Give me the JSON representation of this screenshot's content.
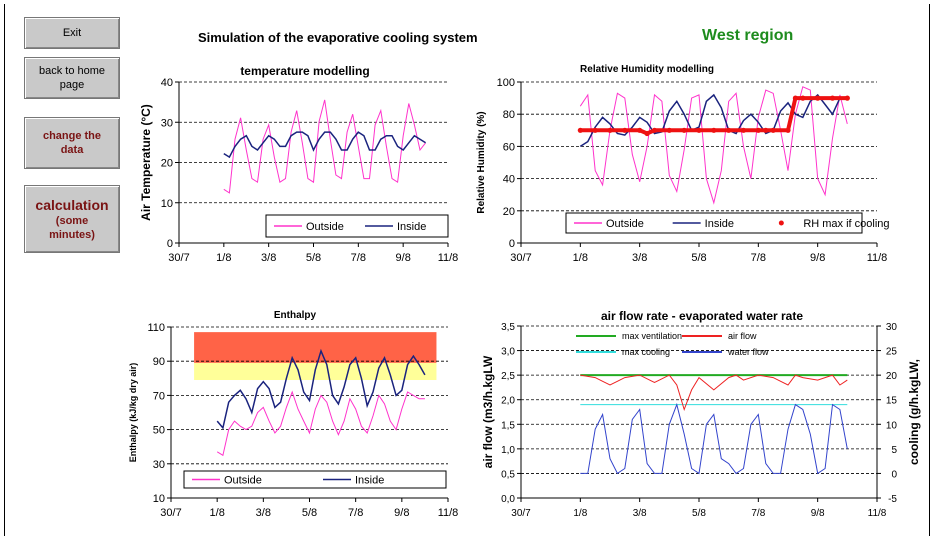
{
  "buttons": {
    "exit": "Exit",
    "home_1": "back to home",
    "home_2": "page",
    "change_1": "change the",
    "change_2": "data",
    "calc_1": "calculation",
    "calc_2": "(some",
    "calc_3": "minutes)"
  },
  "header": {
    "title": "Simulation of the evaporative cooling system",
    "region": "West region",
    "region_color": "#1e8c1e"
  },
  "chart_data": [
    {
      "type": "line",
      "title": "temperature modelling",
      "ylabel": "Air Temperature (°C)",
      "xlabel": "",
      "x_ticks": [
        "30/7",
        "1/8",
        "3/8",
        "5/8",
        "7/8",
        "9/8",
        "11/8"
      ],
      "x_range": [
        "30/7",
        "11/8"
      ],
      "ylim": [
        0,
        45
      ],
      "y_ticks": [
        "0",
        "10",
        "20",
        "30",
        "40"
      ],
      "grid": true,
      "legend": "bottom-right",
      "series": [
        {
          "name": "Outside",
          "color": "#ff33cc",
          "x": [
            1.0,
            1.25,
            1.5,
            1.75,
            2.0,
            2.25,
            2.5,
            2.75,
            3.0,
            3.25,
            3.5,
            3.75,
            4.0,
            4.25,
            4.5,
            4.75,
            5.0,
            5.25,
            5.5,
            5.75,
            6.0,
            6.25,
            6.5,
            6.75,
            7.0,
            7.25,
            7.5,
            7.75,
            8.0,
            8.25,
            8.5,
            8.75,
            9.0,
            9.25,
            9.5,
            9.75,
            10.0
          ],
          "values": [
            15,
            14,
            29,
            35,
            26,
            18,
            17,
            29,
            33,
            24,
            17,
            18,
            31,
            37,
            28,
            18,
            17,
            34,
            40,
            29,
            19,
            18,
            31,
            36,
            27,
            18,
            18,
            33,
            37,
            27,
            18,
            17,
            30,
            39,
            33,
            26,
            28
          ]
        },
        {
          "name": "Inside",
          "color": "#1a237e",
          "x": [
            1.0,
            1.25,
            1.5,
            1.75,
            2.0,
            2.25,
            2.5,
            2.75,
            3.0,
            3.25,
            3.5,
            3.75,
            4.0,
            4.25,
            4.5,
            4.75,
            5.0,
            5.25,
            5.5,
            5.75,
            6.0,
            6.25,
            6.5,
            6.75,
            7.0,
            7.25,
            7.5,
            7.75,
            8.0,
            8.25,
            8.5,
            8.75,
            9.0,
            9.25,
            9.5,
            9.75,
            10.0
          ],
          "values": [
            25,
            24,
            27,
            29,
            30,
            27,
            26,
            28,
            30,
            29,
            27,
            27,
            30,
            31,
            31,
            30,
            26,
            29,
            31,
            31,
            29,
            26,
            26,
            29,
            31,
            30,
            26,
            26,
            29,
            30,
            30,
            27,
            26,
            28,
            30,
            29,
            28
          ]
        }
      ]
    },
    {
      "type": "line",
      "title": "Relative Humidity modelling",
      "ylabel": "Relative Humidity (%)",
      "xlabel": "",
      "x_ticks": [
        "30/7",
        "1/8",
        "3/8",
        "5/8",
        "7/8",
        "9/8",
        "11/8"
      ],
      "x_range": [
        "30/7",
        "11/8"
      ],
      "ylim": [
        0,
        100
      ],
      "y_ticks": [
        "0",
        "20",
        "40",
        "60",
        "80",
        "100"
      ],
      "grid": true,
      "legend": "bottom-right",
      "series": [
        {
          "name": "Outside",
          "color": "#ff33cc",
          "x": [
            1.0,
            1.25,
            1.5,
            1.75,
            2.0,
            2.25,
            2.5,
            2.75,
            3.0,
            3.25,
            3.5,
            3.75,
            4.0,
            4.25,
            4.5,
            4.75,
            5.0,
            5.25,
            5.5,
            5.75,
            6.0,
            6.25,
            6.5,
            6.75,
            7.0,
            7.25,
            7.5,
            7.75,
            8.0,
            8.25,
            8.5,
            8.75,
            9.0,
            9.25,
            9.5,
            9.75,
            10.0
          ],
          "values": [
            85,
            92,
            45,
            36,
            70,
            93,
            90,
            55,
            38,
            60,
            92,
            88,
            42,
            32,
            58,
            90,
            92,
            40,
            25,
            45,
            88,
            93,
            60,
            40,
            78,
            95,
            93,
            70,
            45,
            80,
            97,
            95,
            40,
            30,
            65,
            92,
            74
          ]
        },
        {
          "name": "Inside",
          "color": "#1a237e",
          "x": [
            1.0,
            1.25,
            1.5,
            1.75,
            2.0,
            2.25,
            2.5,
            2.75,
            3.0,
            3.25,
            3.5,
            3.75,
            4.0,
            4.25,
            4.5,
            4.75,
            5.0,
            5.25,
            5.5,
            5.75,
            6.0,
            6.25,
            6.5,
            6.75,
            7.0,
            7.25,
            7.5,
            7.75,
            8.0,
            8.25,
            8.5,
            8.75,
            9.0,
            9.25,
            9.5,
            9.75,
            10.0
          ],
          "values": [
            60,
            63,
            72,
            78,
            74,
            68,
            67,
            72,
            78,
            75,
            68,
            69,
            82,
            88,
            80,
            70,
            72,
            88,
            92,
            84,
            70,
            68,
            76,
            80,
            75,
            68,
            70,
            82,
            87,
            80,
            78,
            88,
            92,
            86,
            80,
            90,
            90
          ]
        },
        {
          "name": "RH max if cooling",
          "color": "#ee1111",
          "x": [
            1.0,
            1.5,
            2.0,
            2.5,
            3.0,
            3.25,
            3.5,
            4.0,
            4.5,
            5.0,
            5.5,
            6.0,
            6.5,
            7.0,
            7.25,
            7.5,
            8.0,
            8.25,
            8.5,
            9.0,
            9.5,
            10.0
          ],
          "values": [
            70,
            70,
            70,
            70,
            70,
            68,
            70,
            70,
            70,
            70,
            70,
            70,
            70,
            70,
            70,
            70,
            70,
            90,
            90,
            90,
            90,
            90
          ]
        }
      ]
    },
    {
      "type": "line",
      "title": "Enthalpy",
      "ylabel": "Enthalpy (kJ/kg dry air)",
      "xlabel": "",
      "x_ticks": [
        "30/7",
        "1/8",
        "3/8",
        "5/8",
        "7/8",
        "9/8",
        "11/8"
      ],
      "x_range": [
        "30/7",
        "11/8"
      ],
      "ylim": [
        10,
        110
      ],
      "y_ticks": [
        "10",
        "30",
        "50",
        "70",
        "90",
        "110"
      ],
      "grid": true,
      "legend": "bottom-right",
      "bands": [
        {
          "from": 89,
          "to": 107,
          "color": "#ff6347"
        },
        {
          "from": 79,
          "to": 89,
          "color": "#ffff99"
        }
      ],
      "series": [
        {
          "name": "Outside",
          "color": "#ff33cc",
          "x": [
            1.0,
            1.25,
            1.5,
            1.75,
            2.0,
            2.25,
            2.5,
            2.75,
            3.0,
            3.25,
            3.5,
            3.75,
            4.0,
            4.25,
            4.5,
            4.75,
            5.0,
            5.25,
            5.5,
            5.75,
            6.0,
            6.25,
            6.5,
            6.75,
            7.0,
            7.25,
            7.5,
            7.75,
            8.0,
            8.25,
            8.5,
            8.75,
            9.0,
            9.25,
            9.5,
            9.75,
            10.0
          ],
          "values": [
            37,
            35,
            50,
            55,
            52,
            50,
            52,
            60,
            63,
            55,
            48,
            52,
            63,
            72,
            62,
            55,
            48,
            62,
            70,
            66,
            55,
            47,
            55,
            68,
            62,
            52,
            48,
            58,
            70,
            65,
            55,
            50,
            62,
            72,
            70,
            68,
            68
          ]
        },
        {
          "name": "Inside",
          "color": "#1a237e",
          "x": [
            1.0,
            1.25,
            1.5,
            1.75,
            2.0,
            2.25,
            2.5,
            2.75,
            3.0,
            3.25,
            3.5,
            3.75,
            4.0,
            4.25,
            4.5,
            4.75,
            5.0,
            5.25,
            5.5,
            5.75,
            6.0,
            6.25,
            6.5,
            6.75,
            7.0,
            7.25,
            7.5,
            7.75,
            8.0,
            8.25,
            8.5,
            8.75,
            9.0,
            9.25,
            9.5,
            9.75,
            10.0
          ],
          "values": [
            55,
            51,
            66,
            70,
            73,
            68,
            60,
            74,
            78,
            74,
            63,
            66,
            80,
            92,
            85,
            72,
            67,
            85,
            96,
            88,
            70,
            65,
            75,
            88,
            92,
            80,
            64,
            72,
            86,
            92,
            82,
            70,
            73,
            88,
            93,
            88,
            82
          ]
        }
      ]
    },
    {
      "type": "line",
      "title": "air flow rate - evaporated water rate",
      "ylabel": "air flow (m3/h.kgLW",
      "y2label": "cooling (g/h.kgLW,",
      "xlabel": "",
      "x_ticks": [
        "30/7",
        "1/8",
        "3/8",
        "5/8",
        "7/8",
        "9/8",
        "11/8"
      ],
      "x_range": [
        "30/7",
        "11/8"
      ],
      "ylim": [
        0,
        3.5
      ],
      "y_ticks": [
        "0,0",
        "0,5",
        "1,0",
        "1,5",
        "2,0",
        "2,5",
        "3,0",
        "3,5"
      ],
      "y2lim": [
        -5,
        30
      ],
      "y2_ticks": [
        "-5",
        "0",
        "5",
        "10",
        "15",
        "20",
        "25",
        "30"
      ],
      "grid": true,
      "legend": "top",
      "series": [
        {
          "name": "max ventilation",
          "color": "#22aa22",
          "axis": "left",
          "x": [
            1.0,
            10.0
          ],
          "values": [
            2.5,
            2.5
          ]
        },
        {
          "name": "max cooling",
          "color": "#33dddd",
          "axis": "left",
          "x": [
            1.0,
            10.0
          ],
          "values": [
            1.9,
            1.9
          ]
        },
        {
          "name": "air flow",
          "color": "#ee2222",
          "axis": "left",
          "x": [
            1.0,
            1.5,
            2.0,
            2.5,
            3.0,
            3.5,
            4.0,
            4.25,
            4.5,
            4.75,
            5.0,
            5.5,
            6.0,
            6.25,
            6.5,
            7.0,
            7.5,
            8.0,
            8.25,
            8.5,
            9.0,
            9.5,
            9.75,
            10.0
          ],
          "values": [
            2.5,
            2.45,
            2.3,
            2.45,
            2.5,
            2.35,
            2.5,
            2.3,
            1.8,
            2.2,
            2.45,
            2.2,
            2.45,
            2.5,
            2.4,
            2.5,
            2.45,
            2.3,
            2.5,
            2.45,
            2.4,
            2.5,
            2.3,
            2.4
          ]
        },
        {
          "name": "water flow",
          "color": "#3344cc",
          "axis": "right",
          "x": [
            1.0,
            1.25,
            1.5,
            1.75,
            2.0,
            2.25,
            2.5,
            2.75,
            3.0,
            3.25,
            3.5,
            3.75,
            4.0,
            4.25,
            4.5,
            4.75,
            5.0,
            5.25,
            5.5,
            5.75,
            6.0,
            6.25,
            6.5,
            6.75,
            7.0,
            7.25,
            7.5,
            7.75,
            8.0,
            8.25,
            8.5,
            8.75,
            9.0,
            9.25,
            9.5,
            9.75,
            10.0
          ],
          "values": [
            0,
            0,
            9,
            12,
            3,
            0,
            1,
            11,
            13,
            2,
            0,
            0,
            10,
            14,
            8,
            1,
            0,
            10,
            12,
            3,
            2,
            0,
            1,
            10,
            12,
            2,
            0,
            0,
            9,
            14,
            13,
            8,
            0,
            1,
            14,
            13,
            5
          ]
        }
      ]
    }
  ]
}
